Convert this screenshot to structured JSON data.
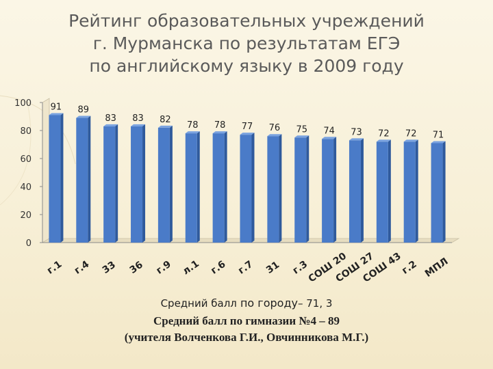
{
  "title_lines": [
    "Рейтинг образовательных учреждений",
    "г. Мурманска по результатам ЕГЭ",
    "по английскому языку в 2009 году"
  ],
  "chart_data": {
    "type": "bar",
    "categories": [
      "г.1",
      "г.4",
      "33",
      "36",
      "г.9",
      "л.1",
      "г.6",
      "г.7",
      "31",
      "г.3",
      "СОШ 20",
      "СОШ 27",
      "СОШ 43",
      "г.2",
      "МПЛ"
    ],
    "values": [
      91,
      89,
      83,
      83,
      82,
      78,
      78,
      77,
      76,
      75,
      74,
      73,
      72,
      72,
      71
    ],
    "ylim": [
      0,
      100
    ],
    "yticks": [
      0,
      20,
      40,
      60,
      80,
      100
    ],
    "grid": false,
    "bar_color": "#4a7bc8",
    "bar_side_color": "#2f5a9c",
    "bar_top_color": "#7aa3e0",
    "title": "",
    "xlabel": "",
    "ylabel": ""
  },
  "footer": {
    "city_avg_prefix": "Средний балл",
    "city_avg_mid": " по городу",
    "city_avg_suffix": "– 71, 3",
    "gymnasium_avg": "Средний балл по гимназии №4 – 89",
    "teachers": "(учителя Волченкова Г.И., Овчинникова М.Г.)"
  }
}
